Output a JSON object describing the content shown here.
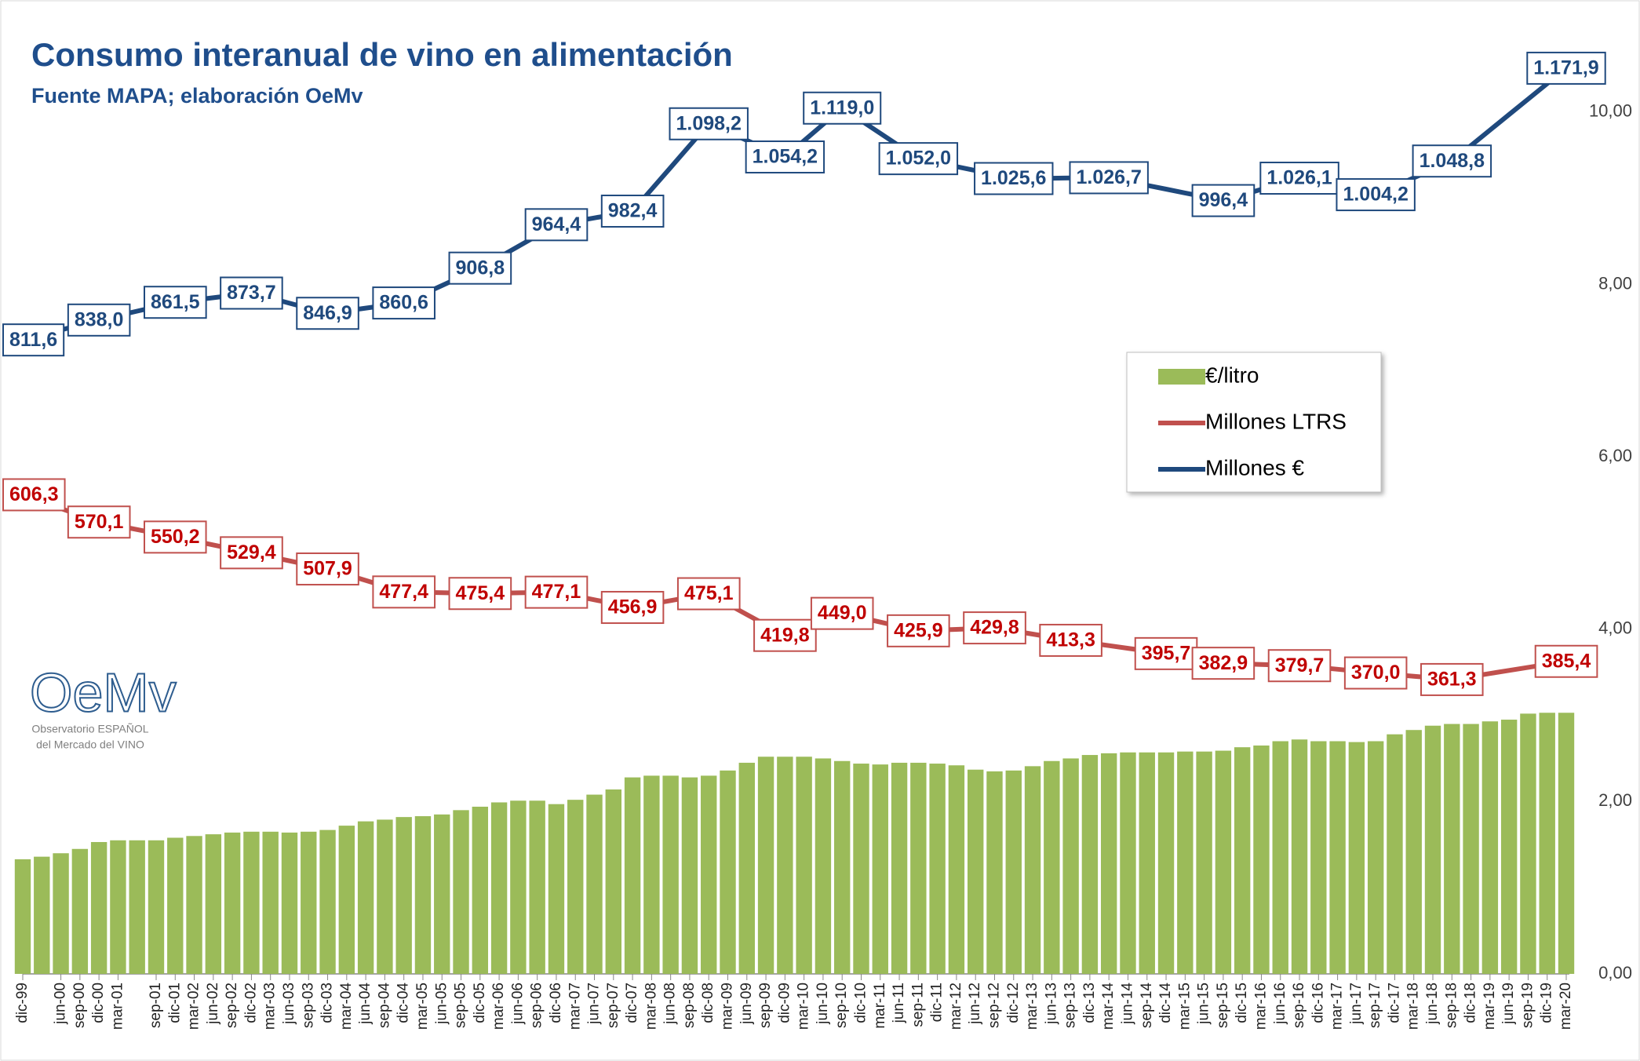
{
  "chart_data": {
    "type": "combo",
    "title": "Consumo interanual de vino en alimentación",
    "subtitle": "Fuente MAPA; elaboración OeMv",
    "logo": {
      "name": "OeMv",
      "caption": [
        "Observatorio ESPAÑOL",
        "del Mercado del VINO"
      ]
    },
    "categories": [
      "dic-99",
      null,
      "jun-00",
      "sep-00",
      "dic-00",
      "mar-01",
      null,
      "sep-01",
      "dic-01",
      "mar-02",
      "jun-02",
      "sep-02",
      "dic-02",
      "mar-03",
      "jun-03",
      "sep-03",
      "dic-03",
      "mar-04",
      "jun-04",
      "sep-04",
      "dic-04",
      "mar-05",
      "jun-05",
      "sep-05",
      "dic-05",
      "mar-06",
      "jun-06",
      "sep-06",
      "dic-06",
      "mar-07",
      "jun-07",
      "sep-07",
      "dic-07",
      "mar-08",
      "jun-08",
      "sep-08",
      "dic-08",
      "mar-09",
      "jun-09",
      "sep-09",
      "dic-09",
      "mar-10",
      "jun-10",
      "sep-10",
      "dic-10",
      "mar-11",
      "jun-11",
      "sep-11",
      "dic-11",
      "mar-12",
      "jun-12",
      "sep-12",
      "dic-12",
      "mar-13",
      "jun-13",
      "sep-13",
      "dic-13",
      "mar-14",
      "jun-14",
      "sep-14",
      "dic-14",
      "mar-15",
      "jun-15",
      "sep-15",
      "dic-15",
      "mar-16",
      "jun-16",
      "sep-16",
      "dic-16",
      "mar-17",
      "jun-17",
      "sep-17",
      "dic-17",
      "mar-18",
      "jun-18",
      "sep-18",
      "dic-18",
      "mar-19",
      "jun-19",
      "sep-19",
      "dic-19",
      "mar-20"
    ],
    "ylim": [
      0,
      11
    ],
    "yticks": [
      {
        "value": 0,
        "label": "0,00"
      },
      {
        "value": 2,
        "label": "2,00"
      },
      {
        "value": 4,
        "label": "4,00"
      },
      {
        "value": 6,
        "label": "6,00"
      },
      {
        "value": 8,
        "label": "8,00"
      },
      {
        "value": 10,
        "label": "10,00"
      }
    ],
    "y2lim": [
      -29,
      1228
    ],
    "series": [
      {
        "name": "€/litro",
        "type": "bar",
        "color": "#9bbb59",
        "values": [
          1.33,
          1.36,
          1.4,
          1.45,
          1.53,
          1.55,
          1.55,
          1.55,
          1.58,
          1.6,
          1.62,
          1.64,
          1.65,
          1.65,
          1.64,
          1.65,
          1.67,
          1.72,
          1.77,
          1.79,
          1.82,
          1.83,
          1.85,
          1.9,
          1.94,
          1.99,
          2.01,
          2.01,
          1.97,
          2.02,
          2.08,
          2.14,
          2.28,
          2.3,
          2.3,
          2.28,
          2.3,
          2.36,
          2.45,
          2.52,
          2.52,
          2.52,
          2.5,
          2.47,
          2.44,
          2.43,
          2.45,
          2.45,
          2.44,
          2.42,
          2.37,
          2.35,
          2.36,
          2.41,
          2.47,
          2.5,
          2.54,
          2.56,
          2.57,
          2.57,
          2.57,
          2.58,
          2.58,
          2.59,
          2.63,
          2.65,
          2.7,
          2.72,
          2.7,
          2.7,
          2.69,
          2.7,
          2.78,
          2.83,
          2.88,
          2.9,
          2.9,
          2.93,
          2.95,
          3.02,
          3.03,
          3.03
        ]
      },
      {
        "name": "Millones LTRS",
        "type": "line",
        "axis": "y2",
        "color": "#c0504d",
        "label_color": "#c00000",
        "values": [
          606.3,
          597.3,
          588.2,
          579.2,
          570.1,
          565.1,
          560.2,
          555.2,
          550.2,
          545.0,
          539.8,
          534.6,
          529.4,
          524.0,
          518.7,
          513.3,
          507.9,
          500.3,
          492.7,
          485.0,
          477.4,
          476.9,
          476.4,
          475.9,
          475.4,
          475.8,
          476.3,
          476.7,
          477.1,
          472.1,
          467.0,
          462.0,
          456.9,
          461.5,
          466.0,
          470.6,
          475.1,
          461.3,
          447.5,
          433.6,
          419.8,
          429.5,
          439.3,
          449.0,
          443.2,
          437.5,
          431.7,
          425.9,
          426.9,
          427.8,
          428.8,
          429.8,
          425.7,
          421.6,
          417.4,
          413.3,
          409.8,
          406.3,
          402.7,
          399.2,
          395.7,
          391.4,
          387.2,
          382.9,
          382.1,
          381.3,
          380.5,
          379.7,
          377.3,
          374.9,
          372.4,
          370.0,
          367.8,
          365.7,
          363.5,
          361.3,
          365.3,
          369.3,
          373.4,
          377.4,
          381.4,
          385.4
        ],
        "value_labels": [
          "606,3",
          null,
          null,
          null,
          "570,1",
          null,
          null,
          null,
          "550,2",
          null,
          null,
          null,
          "529,4",
          null,
          null,
          null,
          "507,9",
          null,
          null,
          null,
          "477,4",
          null,
          null,
          null,
          "475,4",
          null,
          null,
          null,
          "477,1",
          null,
          null,
          null,
          "456,9",
          null,
          null,
          null,
          "475,1",
          null,
          null,
          null,
          "419,8",
          null,
          null,
          "449,0",
          null,
          null,
          null,
          "425,9",
          null,
          null,
          null,
          "429,8",
          null,
          null,
          null,
          "413,3",
          null,
          null,
          null,
          null,
          "395,7",
          null,
          null,
          "382,9",
          null,
          null,
          null,
          "379,7",
          null,
          null,
          null,
          "370,0",
          null,
          null,
          null,
          "361,3",
          null,
          null,
          null,
          null,
          null,
          "385,4"
        ]
      },
      {
        "name": "Millones €",
        "type": "line",
        "axis": "y2",
        "color": "#1f497d",
        "label_color": "#1f497d",
        "values": [
          811.6,
          818.2,
          824.8,
          831.4,
          838.0,
          843.9,
          849.8,
          855.6,
          861.5,
          864.6,
          867.6,
          870.7,
          873.7,
          867.0,
          860.3,
          853.6,
          846.9,
          850.3,
          853.8,
          857.2,
          860.6,
          872.2,
          883.7,
          895.3,
          906.8,
          921.2,
          935.6,
          950.0,
          964.4,
          968.9,
          973.4,
          977.9,
          982.4,
          1011.4,
          1040.3,
          1069.3,
          1098.2,
          1087.2,
          1076.2,
          1065.2,
          1054.2,
          1075.8,
          1097.4,
          1119.0,
          1102.3,
          1085.5,
          1068.8,
          1052.0,
          1046.7,
          1041.4,
          1036.2,
          1030.9,
          1025.6,
          1025.8,
          1026.0,
          1026.3,
          1026.5,
          1026.7,
          1021.7,
          1016.6,
          1011.6,
          1006.5,
          1001.5,
          996.4,
          1003.8,
          1011.3,
          1018.7,
          1026.1,
          1020.6,
          1015.2,
          1009.7,
          1004.2,
          1015.4,
          1026.5,
          1037.7,
          1048.8,
          1069.3,
          1089.9,
          1110.4,
          1130.9,
          1151.4,
          1171.9
        ],
        "value_labels": [
          "811,6",
          null,
          null,
          null,
          "838,0",
          null,
          null,
          null,
          "861,5",
          null,
          null,
          null,
          "873,7",
          null,
          null,
          null,
          "846,9",
          null,
          null,
          null,
          "860,6",
          null,
          null,
          null,
          "906,8",
          null,
          null,
          null,
          "964,4",
          null,
          null,
          null,
          "982,4",
          null,
          null,
          null,
          "1.098,2",
          null,
          null,
          null,
          "1.054,2",
          null,
          null,
          "1.119,0",
          null,
          null,
          null,
          "1.052,0",
          null,
          null,
          null,
          null,
          "1.025,6",
          null,
          null,
          null,
          null,
          "1.026,7",
          null,
          null,
          null,
          null,
          null,
          "996,4",
          null,
          null,
          null,
          "1.026,1",
          null,
          null,
          null,
          "1.004,2",
          null,
          null,
          null,
          "1.048,8",
          null,
          null,
          null,
          null,
          null,
          "1.171,9"
        ]
      }
    ]
  }
}
